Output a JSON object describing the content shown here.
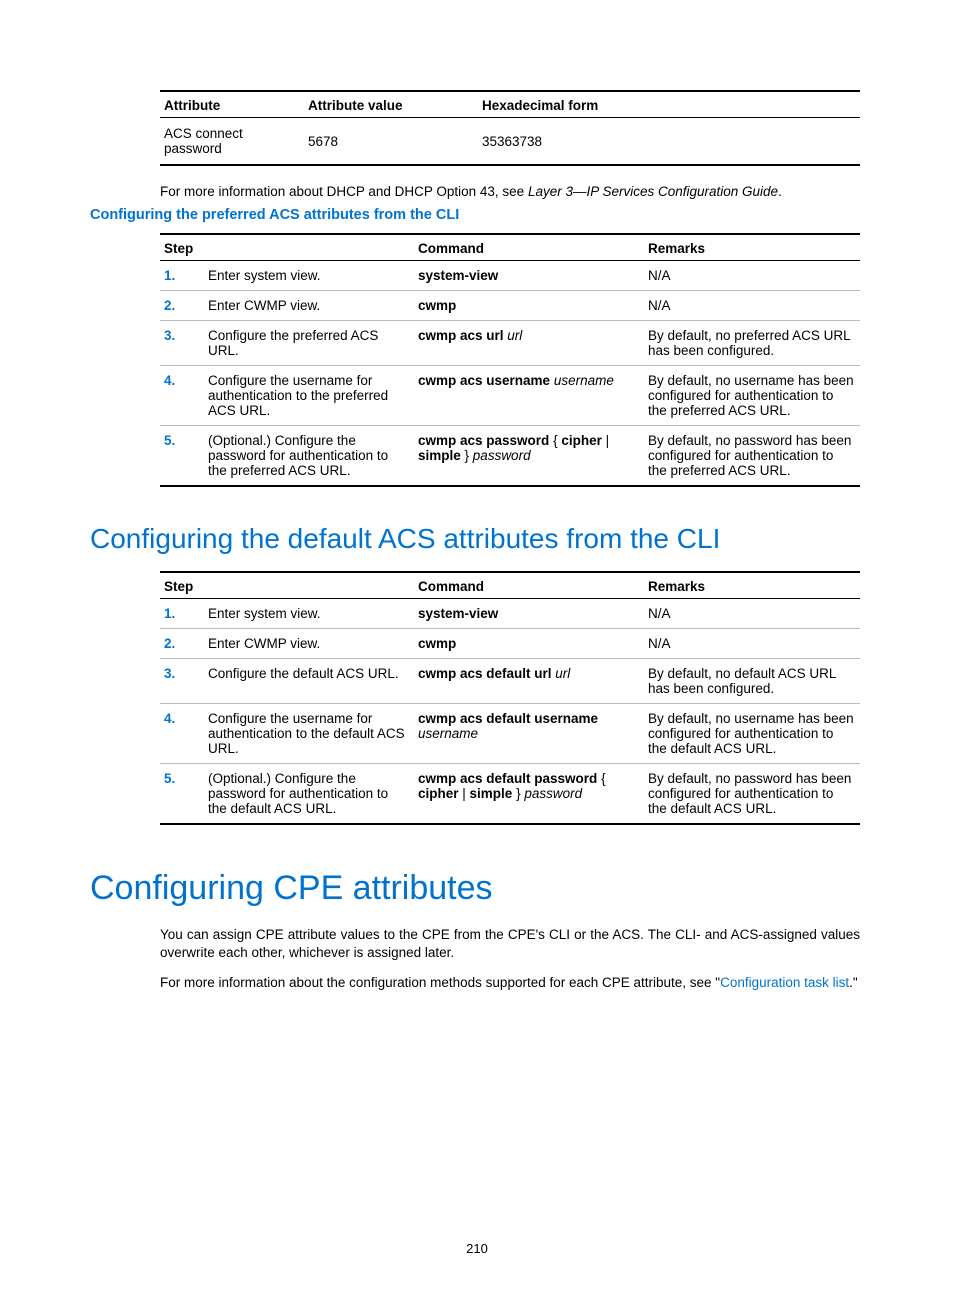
{
  "colors": {
    "accent": "#0073cf",
    "border_light": "#bbbbbb",
    "text": "#000000",
    "bg": "#ffffff"
  },
  "top_table": {
    "headers": [
      "Attribute",
      "Attribute value",
      "Hexadecimal form"
    ],
    "row": {
      "attr": "ACS connect password",
      "value": "5678",
      "hex": "35363738"
    }
  },
  "note_pre": "For more information about DHCP and DHCP Option 43, see ",
  "note_ref": "Layer 3—IP Services Configuration Guide",
  "note_post": ".",
  "h3": "Configuring the preferred ACS attributes from the CLI",
  "steps1": {
    "headers": [
      "Step",
      "Command",
      "Remarks"
    ],
    "rows": [
      {
        "n": "1.",
        "desc": "Enter system view.",
        "cmd_b": "system-view",
        "cmd_i": "",
        "rem": "N/A"
      },
      {
        "n": "2.",
        "desc": "Enter CWMP view.",
        "cmd_b": "cwmp",
        "cmd_i": "",
        "rem": "N/A"
      },
      {
        "n": "3.",
        "desc": "Configure the preferred ACS URL.",
        "cmd_b": "cwmp acs url ",
        "cmd_i": "url",
        "rem": "By default, no preferred ACS URL has been configured."
      },
      {
        "n": "4.",
        "desc": "Configure the username for authentication to the preferred ACS URL.",
        "cmd_b": "cwmp acs username ",
        "cmd_i": "username",
        "rem": "By default, no username has been configured for authentication to the preferred ACS URL."
      },
      {
        "n": "5.",
        "desc": "(Optional.) Configure the password for authentication to the preferred ACS URL.",
        "cmd_b": "cwmp acs password",
        "cmd_mid": " { ",
        "cmd_b2": "cipher",
        "cmd_mid2": " | ",
        "cmd_b3": "simple",
        "cmd_mid3": " } ",
        "cmd_i": "password",
        "rem": "By default, no password has been configured for authentication to the preferred ACS URL."
      }
    ]
  },
  "h2": "Configuring the default ACS attributes from the CLI",
  "steps2": {
    "headers": [
      "Step",
      "Command",
      "Remarks"
    ],
    "rows": [
      {
        "n": "1.",
        "desc": "Enter system view.",
        "cmd_b": "system-view",
        "cmd_i": "",
        "rem": "N/A"
      },
      {
        "n": "2.",
        "desc": "Enter CWMP view.",
        "cmd_b": "cwmp",
        "cmd_i": "",
        "rem": "N/A"
      },
      {
        "n": "3.",
        "desc": "Configure the default ACS URL.",
        "cmd_b": "cwmp acs default url ",
        "cmd_i": "url",
        "rem": "By default, no default ACS URL has been configured."
      },
      {
        "n": "4.",
        "desc": "Configure the username for authentication to the default ACS URL.",
        "cmd_b": "cwmp acs default username ",
        "cmd_i": "username",
        "rem": "By default, no username has been configured for authentication to the default ACS URL."
      },
      {
        "n": "5.",
        "desc": "(Optional.) Configure the password for authentication to the default ACS URL.",
        "cmd_b": "cwmp acs default password",
        "cmd_mid": " { ",
        "cmd_b2": "cipher",
        "cmd_mid2": " | ",
        "cmd_b3": "simple",
        "cmd_mid3": " } ",
        "cmd_i": "password",
        "rem": "By default, no password has been configured for authentication to the default ACS URL."
      }
    ]
  },
  "h1": "Configuring CPE attributes",
  "p1": "You can assign CPE attribute values to the CPE from the CPE's CLI or the ACS. The CLI- and ACS-assigned values overwrite each other, whichever is assigned later.",
  "p2_pre": "For more information about the configuration methods supported for each CPE attribute, see \"",
  "p2_link": "Configuration task list",
  "p2_post": ".\"",
  "pagenum": "210"
}
